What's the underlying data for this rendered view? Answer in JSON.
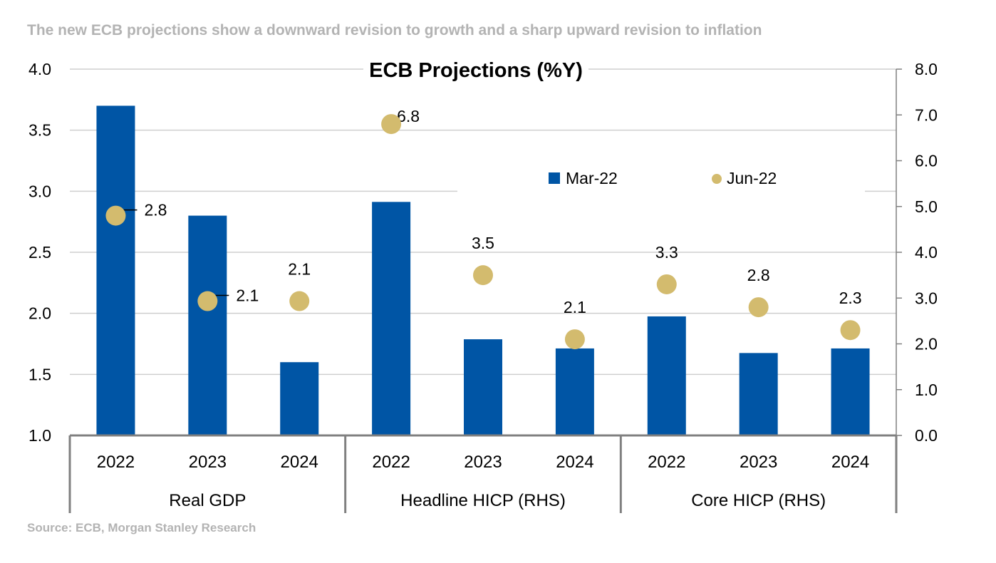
{
  "header": {
    "text": "The new ECB projections show a downward revision to growth and a sharp upward revision to inflation"
  },
  "footer": {
    "source": "Source: ECB, Morgan Stanley Research"
  },
  "chart_data": {
    "type": "bar",
    "title": "ECB Projections (%Y)",
    "categories": [
      "2022",
      "2023",
      "2024",
      "2022",
      "2023",
      "2024",
      "2022",
      "2023",
      "2024"
    ],
    "groups": [
      {
        "label": "Real GDP",
        "span": [
          0,
          2
        ],
        "axis": "left"
      },
      {
        "label": "Headline HICP (RHS)",
        "span": [
          3,
          5
        ],
        "axis": "right"
      },
      {
        "label": "Core HICP (RHS)",
        "span": [
          6,
          8
        ],
        "axis": "right"
      }
    ],
    "series": [
      {
        "name": "Mar-22",
        "kind": "bar",
        "color": "#0055a5",
        "values": [
          3.7,
          2.8,
          1.6,
          5.1,
          2.1,
          1.9,
          2.6,
          1.8,
          1.9
        ]
      },
      {
        "name": "Jun-22",
        "kind": "marker",
        "color": "#d3bb6e",
        "values": [
          2.8,
          2.1,
          2.1,
          6.8,
          3.5,
          2.1,
          3.3,
          2.8,
          2.3
        ],
        "labels": [
          "2.8",
          "2.1",
          "2.1",
          "6.8",
          "3.5",
          "2.1",
          "3.3",
          "2.8",
          "2.3"
        ]
      }
    ],
    "y_left": {
      "lim": [
        1.0,
        4.0
      ],
      "ticks": [
        "1.0",
        "1.5",
        "2.0",
        "2.5",
        "3.0",
        "3.5",
        "4.0"
      ]
    },
    "y_right": {
      "lim": [
        0.0,
        8.0
      ],
      "ticks": [
        "0.0",
        "1.0",
        "2.0",
        "3.0",
        "4.0",
        "5.0",
        "6.0",
        "7.0",
        "8.0"
      ]
    },
    "grid": true,
    "legend": {
      "position": "top-right",
      "entries": [
        "Mar-22",
        "Jun-22"
      ]
    }
  }
}
